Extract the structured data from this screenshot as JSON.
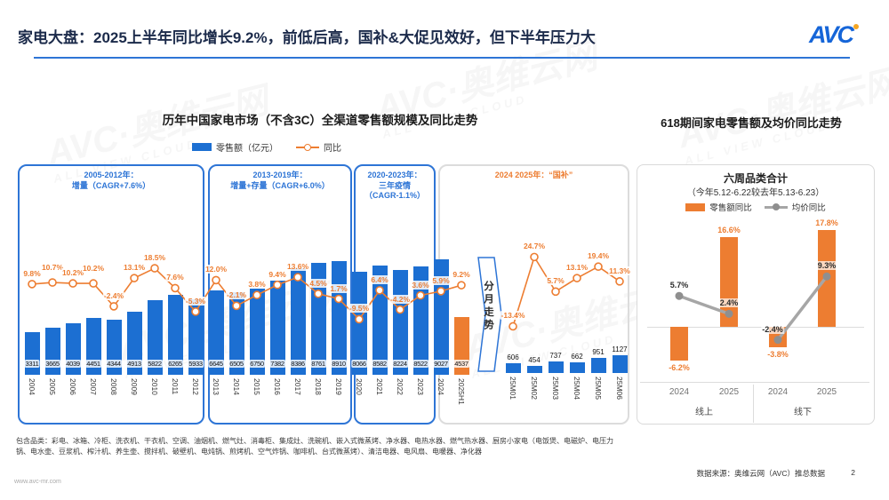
{
  "header": {
    "title": "家电大盘：2025上半年同比增长9.2%，前低后高，国补&大促见效好，但下半年压力大",
    "logo_text": "AVC"
  },
  "watermark": "AVC·奥维云网",
  "watermark_sub": "ALL VIEW CLOUD",
  "left": {
    "title": "历年中国家电市场（不含3C）全渠道零售额规模及同比走势",
    "legend_bar": "零售额（亿元）",
    "legend_line": "同比",
    "period_boxes": [
      {
        "label": "2005-2012年：\n增量（CAGR+7.6%）"
      },
      {
        "label": "2013-2019年：\n增量+存量（CAGR+6.0%）"
      },
      {
        "label": "2020-2023年：\n三年疫情\n（CAGR-1.1%）"
      },
      {
        "label": "2024  2025年：“国补”"
      }
    ],
    "arrow_label": "分月走势"
  },
  "right": {
    "title": "618期间家电零售额及均价同比走势",
    "box_title": "六周品类合计",
    "box_subtitle": "（今年5.12-6.22较去年5.13-6.23）",
    "legend_bar": "零售额同比",
    "legend_line": "均价同比"
  },
  "footnote": "包含品类：彩电、冰箱、冷柜、洗衣机、干衣机、空调、油烟机、燃气灶、消毒柜、集成灶、洗碗机、嵌入式微蒸烤、净水器、电热水器、燃气热水器、厨房小家电（电饭煲、电磁炉、电压力锅、电水壶、豆浆机、榨汁机、养生壶、搅拌机、破壁机、电炖锅、煎烤机、空气炸锅、咖啡机、台式微蒸烤）、清洁电器、电风扇、电暖器、净化器",
  "footer": {
    "url": "www.avc-mr.com",
    "source": "数据来源：奥维云网（AVC）推总数据",
    "page": "2"
  },
  "colors": {
    "bar_blue": "#1c6fd2",
    "accent_blue": "#2e75d6",
    "orange": "#ed7d31",
    "gray_line": "#a6a6a6",
    "gray_dot": "#8f8f8f"
  },
  "chart_data": [
    {
      "type": "bar",
      "title": "历年中国家电市场（不含3C）全渠道零售额规模及同比走势",
      "legend": [
        "零售额（亿元）",
        "同比"
      ],
      "ylabel": "零售额（亿元）",
      "categories": [
        "2004",
        "2005",
        "2006",
        "2007",
        "2008",
        "2009",
        "2010",
        "2011",
        "2012",
        "2013",
        "2014",
        "2015",
        "2016",
        "2017",
        "2018",
        "2019",
        "2020",
        "2021",
        "2022",
        "2023",
        "2024",
        "2025H1"
      ],
      "bar_values": [
        3311,
        3665,
        4039,
        4451,
        4344,
        4913,
        5822,
        6265,
        5933,
        6645,
        6505,
        6750,
        7382,
        8386,
        8761,
        8910,
        8066,
        8582,
        8224,
        8522,
        9027,
        4537
      ],
      "line_values_pct": [
        9.8,
        10.7,
        10.2,
        10.2,
        -2.4,
        13.1,
        18.5,
        7.6,
        -5.3,
        12.0,
        -2.1,
        3.8,
        9.4,
        13.6,
        4.5,
        1.7,
        -9.5,
        6.4,
        -4.2,
        3.6,
        5.9,
        9.2
      ],
      "last_bar_highlighted": true,
      "monthly": {
        "categories": [
          "25M01",
          "25M02",
          "25M03",
          "25M04",
          "25M05",
          "25M06"
        ],
        "bar_values": [
          606,
          454,
          737,
          662,
          951,
          1127
        ],
        "line_values_pct": [
          -13.4,
          24.7,
          5.7,
          13.1,
          19.4,
          11.3
        ]
      },
      "annotations": [
        "2005-2012年：增量（CAGR+7.6%）",
        "2013-2019年：增量+存量（CAGR+6.0%）",
        "2020-2023年：三年疫情（CAGR-1.1%）",
        "2024 2025年：“国补”",
        "分月走势"
      ]
    },
    {
      "type": "bar",
      "title": "618期间家电零售额及均价同比走势",
      "subtitle": "六周品类合计（今年5.12-6.22较去年5.13-6.23）",
      "groups": [
        "线上",
        "线下"
      ],
      "categories": [
        "2024",
        "2025",
        "2024",
        "2025"
      ],
      "series": [
        {
          "name": "零售额同比",
          "type": "bar",
          "values": [
            -6.2,
            16.6,
            -3.8,
            17.8
          ]
        },
        {
          "name": "均价同比",
          "type": "line",
          "values": [
            5.7,
            2.4,
            -2.4,
            9.3
          ]
        }
      ]
    }
  ]
}
